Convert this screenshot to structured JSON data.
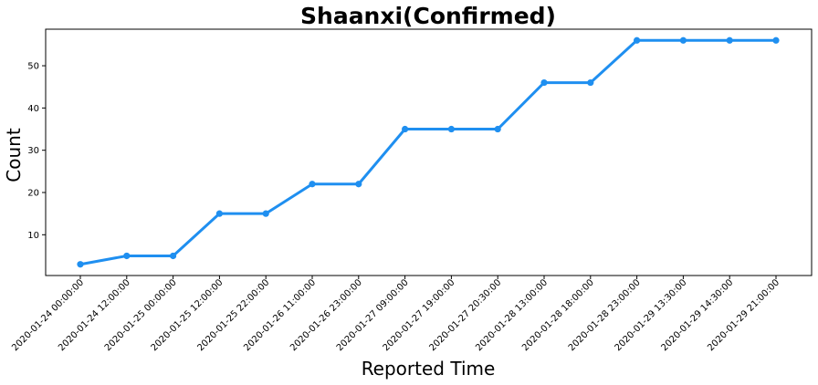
{
  "chart_data": {
    "type": "line",
    "title": "Shaanxi(Confirmed)",
    "xlabel": "Reported Time",
    "ylabel": "Count",
    "categories": [
      "2020-01-24 00:00:00",
      "2020-01-24 12:00:00",
      "2020-01-25 00:00:00",
      "2020-01-25 12:00:00",
      "2020-01-25 22:00:00",
      "2020-01-26 11:00:00",
      "2020-01-26 23:00:00",
      "2020-01-27 09:00:00",
      "2020-01-27 19:00:00",
      "2020-01-27 20:30:00",
      "2020-01-28 13:00:00",
      "2020-01-28 18:00:00",
      "2020-01-28 23:00:00",
      "2020-01-29 13:30:00",
      "2020-01-29 14:30:00",
      "2020-01-29 21:00:00"
    ],
    "series": [
      {
        "values": [
          3,
          5,
          5,
          15,
          15,
          22,
          22,
          35,
          35,
          35,
          46,
          46,
          56,
          56,
          56,
          56
        ],
        "color": "#1f8ff0"
      }
    ],
    "ylim": [
      0.35,
      58.65
    ],
    "yticks": [
      10,
      20,
      30,
      40,
      50
    ],
    "grid": false,
    "legend": "none"
  }
}
